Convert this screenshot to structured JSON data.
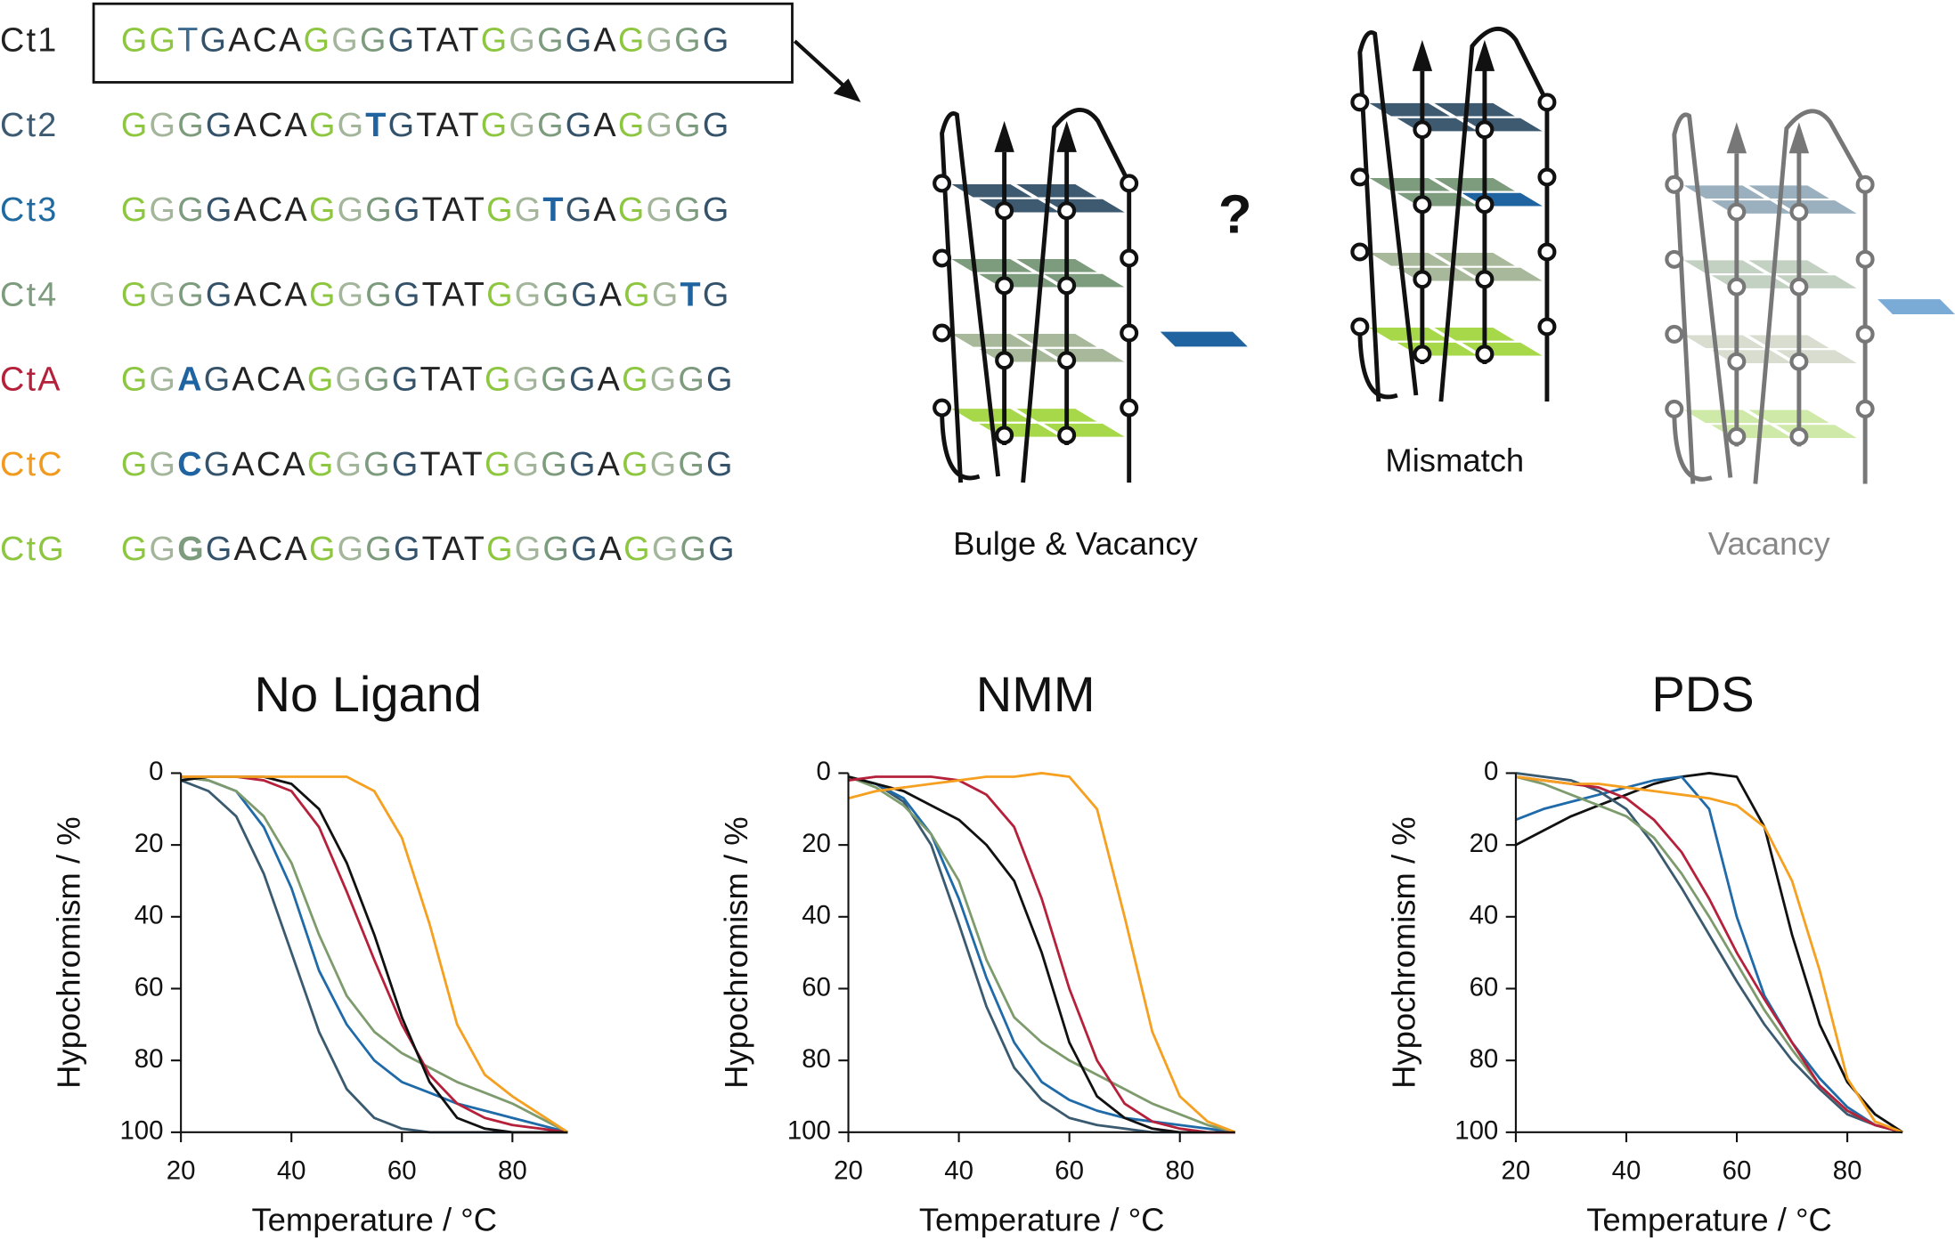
{
  "sequences": [
    {
      "label": "Ct1",
      "color": "#222222",
      "parts": [
        {
          "text": "GG",
          "color": "#8dc63f"
        },
        {
          "text": "T",
          "color": "#3d6a8e"
        },
        {
          "text": "G",
          "color": "#34536b"
        },
        {
          "text": "ACA",
          "color": "#222222"
        },
        {
          "text": "G",
          "color": "#8dc63f"
        },
        {
          "text": "G",
          "color": "#a3b59a"
        },
        {
          "text": "G",
          "color": "#7d9b7d"
        },
        {
          "text": "G",
          "color": "#34536b"
        },
        {
          "text": "TAT",
          "color": "#222222"
        },
        {
          "text": "G",
          "color": "#8dc63f"
        },
        {
          "text": "G",
          "color": "#a3b59a"
        },
        {
          "text": "G",
          "color": "#7d9b7d"
        },
        {
          "text": "G",
          "color": "#34536b"
        },
        {
          "text": "A",
          "color": "#222222"
        },
        {
          "text": "G",
          "color": "#8dc63f"
        },
        {
          "text": "G",
          "color": "#a3b59a"
        },
        {
          "text": "G",
          "color": "#7d9b7d"
        },
        {
          "text": "G",
          "color": "#34536b"
        }
      ]
    },
    {
      "label": "Ct2",
      "color": "#3c5a72",
      "parts": [
        {
          "text": "G",
          "color": "#8dc63f"
        },
        {
          "text": "G",
          "color": "#a3b59a"
        },
        {
          "text": "G",
          "color": "#7d9b7d"
        },
        {
          "text": "G",
          "color": "#34536b"
        },
        {
          "text": "ACA",
          "color": "#222222"
        },
        {
          "text": "G",
          "color": "#8dc63f"
        },
        {
          "text": "G",
          "color": "#a3b59a"
        },
        {
          "text": "T",
          "color": "#1f64a0",
          "bold": true
        },
        {
          "text": "G",
          "color": "#34536b"
        },
        {
          "text": "TAT",
          "color": "#222222"
        },
        {
          "text": "G",
          "color": "#8dc63f"
        },
        {
          "text": "G",
          "color": "#a3b59a"
        },
        {
          "text": "G",
          "color": "#7d9b7d"
        },
        {
          "text": "G",
          "color": "#34536b"
        },
        {
          "text": "A",
          "color": "#222222"
        },
        {
          "text": "G",
          "color": "#8dc63f"
        },
        {
          "text": "G",
          "color": "#a3b59a"
        },
        {
          "text": "G",
          "color": "#7d9b7d"
        },
        {
          "text": "G",
          "color": "#34536b"
        }
      ]
    },
    {
      "label": "Ct3",
      "color": "#1f6aa0",
      "parts": [
        {
          "text": "G",
          "color": "#8dc63f"
        },
        {
          "text": "G",
          "color": "#a3b59a"
        },
        {
          "text": "G",
          "color": "#7d9b7d"
        },
        {
          "text": "G",
          "color": "#34536b"
        },
        {
          "text": "ACA",
          "color": "#222222"
        },
        {
          "text": "G",
          "color": "#8dc63f"
        },
        {
          "text": "G",
          "color": "#a3b59a"
        },
        {
          "text": "G",
          "color": "#7d9b7d"
        },
        {
          "text": "G",
          "color": "#34536b"
        },
        {
          "text": "TAT",
          "color": "#222222"
        },
        {
          "text": "G",
          "color": "#8dc63f"
        },
        {
          "text": "G",
          "color": "#a3b59a"
        },
        {
          "text": "T",
          "color": "#1f64a0",
          "bold": true
        },
        {
          "text": "G",
          "color": "#34536b"
        },
        {
          "text": "A",
          "color": "#222222"
        },
        {
          "text": "G",
          "color": "#8dc63f"
        },
        {
          "text": "G",
          "color": "#a3b59a"
        },
        {
          "text": "G",
          "color": "#7d9b7d"
        },
        {
          "text": "G",
          "color": "#34536b"
        }
      ]
    },
    {
      "label": "Ct4",
      "color": "#7d9b7d",
      "parts": [
        {
          "text": "G",
          "color": "#8dc63f"
        },
        {
          "text": "G",
          "color": "#a3b59a"
        },
        {
          "text": "G",
          "color": "#7d9b7d"
        },
        {
          "text": "G",
          "color": "#34536b"
        },
        {
          "text": "ACA",
          "color": "#222222"
        },
        {
          "text": "G",
          "color": "#8dc63f"
        },
        {
          "text": "G",
          "color": "#a3b59a"
        },
        {
          "text": "G",
          "color": "#7d9b7d"
        },
        {
          "text": "G",
          "color": "#34536b"
        },
        {
          "text": "TAT",
          "color": "#222222"
        },
        {
          "text": "G",
          "color": "#8dc63f"
        },
        {
          "text": "G",
          "color": "#a3b59a"
        },
        {
          "text": "G",
          "color": "#7d9b7d"
        },
        {
          "text": "G",
          "color": "#34536b"
        },
        {
          "text": "A",
          "color": "#222222"
        },
        {
          "text": "G",
          "color": "#8dc63f"
        },
        {
          "text": "G",
          "color": "#a3b59a"
        },
        {
          "text": "T",
          "color": "#1f64a0",
          "bold": true
        },
        {
          "text": "G",
          "color": "#34536b"
        }
      ]
    },
    {
      "label": "CtA",
      "color": "#b5203a",
      "parts": [
        {
          "text": "G",
          "color": "#8dc63f"
        },
        {
          "text": "G",
          "color": "#a3b59a"
        },
        {
          "text": "A",
          "color": "#1f64a0",
          "bold": true
        },
        {
          "text": "G",
          "color": "#34536b"
        },
        {
          "text": "ACA",
          "color": "#222222"
        },
        {
          "text": "G",
          "color": "#8dc63f"
        },
        {
          "text": "G",
          "color": "#a3b59a"
        },
        {
          "text": "G",
          "color": "#7d9b7d"
        },
        {
          "text": "G",
          "color": "#34536b"
        },
        {
          "text": "TAT",
          "color": "#222222"
        },
        {
          "text": "G",
          "color": "#8dc63f"
        },
        {
          "text": "G",
          "color": "#a3b59a"
        },
        {
          "text": "G",
          "color": "#7d9b7d"
        },
        {
          "text": "G",
          "color": "#34536b"
        },
        {
          "text": "A",
          "color": "#222222"
        },
        {
          "text": "G",
          "color": "#8dc63f"
        },
        {
          "text": "G",
          "color": "#a3b59a"
        },
        {
          "text": "G",
          "color": "#7d9b7d"
        },
        {
          "text": "G",
          "color": "#34536b"
        }
      ]
    },
    {
      "label": "CtC",
      "color": "#f29a1e",
      "parts": [
        {
          "text": "G",
          "color": "#8dc63f"
        },
        {
          "text": "G",
          "color": "#a3b59a"
        },
        {
          "text": "C",
          "color": "#1f64a0",
          "bold": true
        },
        {
          "text": "G",
          "color": "#34536b"
        },
        {
          "text": "ACA",
          "color": "#222222"
        },
        {
          "text": "G",
          "color": "#8dc63f"
        },
        {
          "text": "G",
          "color": "#a3b59a"
        },
        {
          "text": "G",
          "color": "#7d9b7d"
        },
        {
          "text": "G",
          "color": "#34536b"
        },
        {
          "text": "TAT",
          "color": "#222222"
        },
        {
          "text": "G",
          "color": "#8dc63f"
        },
        {
          "text": "G",
          "color": "#a3b59a"
        },
        {
          "text": "G",
          "color": "#7d9b7d"
        },
        {
          "text": "G",
          "color": "#34536b"
        },
        {
          "text": "A",
          "color": "#222222"
        },
        {
          "text": "G",
          "color": "#8dc63f"
        },
        {
          "text": "G",
          "color": "#a3b59a"
        },
        {
          "text": "G",
          "color": "#7d9b7d"
        },
        {
          "text": "G",
          "color": "#34536b"
        }
      ]
    },
    {
      "label": "CtG",
      "color": "#8dc63f",
      "parts": [
        {
          "text": "G",
          "color": "#8dc63f"
        },
        {
          "text": "G",
          "color": "#a3b59a"
        },
        {
          "text": "G",
          "color": "#7d9b7d",
          "bold": true
        },
        {
          "text": "G",
          "color": "#34536b"
        },
        {
          "text": "ACA",
          "color": "#222222"
        },
        {
          "text": "G",
          "color": "#8dc63f"
        },
        {
          "text": "G",
          "color": "#a3b59a"
        },
        {
          "text": "G",
          "color": "#7d9b7d"
        },
        {
          "text": "G",
          "color": "#34536b"
        },
        {
          "text": "TAT",
          "color": "#222222"
        },
        {
          "text": "G",
          "color": "#8dc63f"
        },
        {
          "text": "G",
          "color": "#a3b59a"
        },
        {
          "text": "G",
          "color": "#7d9b7d"
        },
        {
          "text": "G",
          "color": "#34536b"
        },
        {
          "text": "A",
          "color": "#222222"
        },
        {
          "text": "G",
          "color": "#8dc63f"
        },
        {
          "text": "G",
          "color": "#a3b59a"
        },
        {
          "text": "G",
          "color": "#7d9b7d"
        },
        {
          "text": "G",
          "color": "#34536b"
        }
      ]
    }
  ],
  "diagrams": {
    "question": "?",
    "labels": [
      "Bulge & Vacancy",
      "Mismatch",
      "Vacancy"
    ]
  },
  "chart_data": [
    {
      "type": "line",
      "title": "No Ligand",
      "x_label": "Temperature / °C",
      "y_label": "Hypochromism / %",
      "xlim": [
        20,
        90
      ],
      "xticks": [
        20,
        40,
        60,
        80
      ],
      "ylim": [
        0,
        100
      ],
      "yticks": [
        0,
        20,
        40,
        60,
        80,
        100
      ],
      "y_inverted": true,
      "grid": false,
      "x": [
        20,
        25,
        30,
        35,
        40,
        45,
        50,
        55,
        60,
        65,
        70,
        75,
        80,
        85,
        90
      ],
      "series": [
        {
          "color": "#3a5a70",
          "values": [
            2,
            5,
            12,
            28,
            50,
            72,
            88,
            96,
            99,
            100,
            100,
            100,
            100,
            100,
            100
          ]
        },
        {
          "color": "#1f6aa8",
          "values": [
            1,
            2,
            5,
            15,
            32,
            55,
            70,
            80,
            86,
            89,
            92,
            94,
            96,
            98,
            100
          ]
        },
        {
          "color": "#7d9b6d",
          "values": [
            1,
            2,
            5,
            12,
            25,
            45,
            62,
            72,
            78,
            82,
            86,
            89,
            92,
            96,
            100
          ]
        },
        {
          "color": "#b5203a",
          "values": [
            1,
            1,
            1,
            2,
            5,
            15,
            33,
            52,
            70,
            84,
            92,
            96,
            98,
            99,
            100
          ]
        },
        {
          "color": "#111111",
          "values": [
            2,
            1,
            1,
            1,
            3,
            10,
            25,
            45,
            68,
            86,
            96,
            99,
            100,
            100,
            100
          ]
        },
        {
          "color": "#f5a020",
          "values": [
            1,
            1,
            1,
            1,
            1,
            1,
            1,
            5,
            18,
            42,
            70,
            84,
            90,
            95,
            100
          ]
        }
      ]
    },
    {
      "type": "line",
      "title": "NMM",
      "x_label": "Temperature / °C",
      "y_label": "Hypochromism / %",
      "xlim": [
        20,
        90
      ],
      "xticks": [
        20,
        40,
        60,
        80
      ],
      "ylim": [
        0,
        100
      ],
      "yticks": [
        0,
        20,
        40,
        60,
        80,
        100
      ],
      "y_inverted": true,
      "grid": false,
      "x": [
        20,
        25,
        30,
        35,
        40,
        45,
        50,
        55,
        60,
        65,
        70,
        75,
        80,
        85,
        90
      ],
      "series": [
        {
          "color": "#3a5a70",
          "values": [
            1,
            3,
            8,
            20,
            42,
            65,
            82,
            91,
            96,
            98,
            99,
            100,
            100,
            100,
            100
          ]
        },
        {
          "color": "#1f6aa8",
          "values": [
            1,
            3,
            7,
            17,
            35,
            57,
            75,
            86,
            91,
            94,
            96,
            97,
            98,
            99,
            100
          ]
        },
        {
          "color": "#7d9b6d",
          "values": [
            1,
            4,
            9,
            17,
            30,
            52,
            68,
            75,
            80,
            84,
            88,
            92,
            95,
            98,
            100
          ]
        },
        {
          "color": "#111111",
          "values": [
            1,
            3,
            5,
            9,
            13,
            20,
            30,
            50,
            75,
            90,
            96,
            99,
            100,
            100,
            100
          ]
        },
        {
          "color": "#b5203a",
          "values": [
            2,
            1,
            1,
            1,
            2,
            6,
            15,
            35,
            60,
            80,
            92,
            97,
            99,
            100,
            100
          ]
        },
        {
          "color": "#f5a020",
          "values": [
            7,
            5,
            4,
            3,
            2,
            1,
            1,
            0,
            1,
            10,
            40,
            72,
            90,
            97,
            100
          ]
        }
      ]
    },
    {
      "type": "line",
      "title": "PDS",
      "x_label": "Temperature / °C",
      "y_label": "Hypochromism / %",
      "xlim": [
        20,
        90
      ],
      "xticks": [
        20,
        40,
        60,
        80
      ],
      "ylim": [
        0,
        100
      ],
      "yticks": [
        0,
        20,
        40,
        60,
        80,
        100
      ],
      "y_inverted": true,
      "grid": false,
      "x": [
        20,
        25,
        30,
        35,
        40,
        45,
        50,
        55,
        60,
        65,
        70,
        75,
        80,
        85,
        90
      ],
      "series": [
        {
          "color": "#111111",
          "values": [
            20,
            16,
            12,
            9,
            6,
            3,
            1,
            0,
            1,
            15,
            45,
            70,
            86,
            95,
            100
          ]
        },
        {
          "color": "#1f6aa8",
          "values": [
            13,
            10,
            8,
            6,
            4,
            2,
            1,
            10,
            40,
            62,
            75,
            85,
            93,
            98,
            100
          ]
        },
        {
          "color": "#3a5a70",
          "values": [
            0,
            1,
            2,
            5,
            10,
            20,
            32,
            45,
            58,
            70,
            80,
            88,
            95,
            98,
            100
          ]
        },
        {
          "color": "#7d9b6d",
          "values": [
            1,
            3,
            6,
            9,
            12,
            18,
            28,
            40,
            53,
            66,
            77,
            87,
            94,
            98,
            100
          ]
        },
        {
          "color": "#b5203a",
          "values": [
            1,
            2,
            3,
            4,
            7,
            13,
            22,
            35,
            50,
            63,
            75,
            87,
            94,
            98,
            100
          ]
        },
        {
          "color": "#f5a020",
          "values": [
            1,
            2,
            3,
            3,
            4,
            5,
            6,
            7,
            9,
            15,
            30,
            55,
            85,
            97,
            100
          ]
        }
      ]
    }
  ]
}
